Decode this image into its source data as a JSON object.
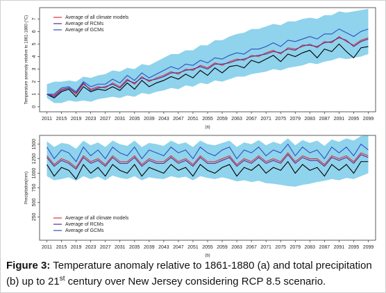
{
  "chart_data": [
    {
      "type": "line",
      "ylabel": "Temperature anomaly relative to 1861-1880 (°C)",
      "xlabel": "(a)",
      "legend": "top-left",
      "x": [
        2011,
        2013,
        2015,
        2017,
        2019,
        2021,
        2023,
        2025,
        2027,
        2029,
        2031,
        2033,
        2035,
        2037,
        2039,
        2041,
        2043,
        2045,
        2047,
        2049,
        2051,
        2053,
        2055,
        2057,
        2059,
        2061,
        2063,
        2065,
        2067,
        2069,
        2071,
        2073,
        2075,
        2077,
        2079,
        2081,
        2083,
        2085,
        2087,
        2089,
        2091,
        2093,
        2095,
        2097,
        2099
      ],
      "xlim": [
        2009,
        2101
      ],
      "xticks": [
        2011,
        2015,
        2019,
        2023,
        2027,
        2031,
        2035,
        2039,
        2043,
        2047,
        2051,
        2055,
        2059,
        2063,
        2067,
        2071,
        2075,
        2079,
        2083,
        2087,
        2091,
        2095,
        2099
      ],
      "ylim": [
        -0.4,
        7.9
      ],
      "yticks": [
        0,
        1,
        2,
        3,
        4,
        5,
        6,
        7
      ],
      "band": {
        "color": "#8fd3ec",
        "lower": [
          0.7,
          0.3,
          0.3,
          0.5,
          0.4,
          0.5,
          0.4,
          0.6,
          0.7,
          0.8,
          0.7,
          0.9,
          0.8,
          1.1,
          1.0,
          1.2,
          1.3,
          1.5,
          1.4,
          1.7,
          1.6,
          1.9,
          1.8,
          2.1,
          2.0,
          2.2,
          2.4,
          2.4,
          2.6,
          2.7,
          2.8,
          3.0,
          2.9,
          3.1,
          3.2,
          3.3,
          3.5,
          3.4,
          3.6,
          3.7,
          3.9,
          3.8,
          3.9,
          4.0,
          4.2
        ],
        "upper": [
          1.8,
          2.0,
          2.0,
          2.1,
          2.0,
          2.4,
          2.3,
          2.5,
          2.6,
          2.9,
          2.8,
          3.1,
          3.0,
          3.4,
          3.3,
          3.6,
          3.9,
          4.2,
          4.2,
          4.5,
          4.5,
          4.9,
          4.9,
          5.3,
          5.3,
          5.6,
          5.8,
          5.9,
          6.2,
          6.2,
          6.4,
          6.6,
          6.5,
          6.8,
          6.8,
          7.0,
          7.1,
          7.0,
          7.3,
          7.3,
          7.6,
          7.5,
          7.6,
          7.7,
          7.8
        ]
      },
      "series": [
        {
          "color": "#000000",
          "values": [
            1.0,
            0.7,
            1.2,
            1.4,
            0.8,
            1.6,
            1.2,
            1.4,
            1.3,
            1.6,
            1.3,
            1.9,
            1.4,
            2.1,
            1.6,
            1.9,
            2.1,
            2.4,
            2.2,
            2.6,
            2.3,
            2.9,
            2.5,
            3.1,
            2.7,
            3.2,
            3.3,
            3.1,
            3.7,
            3.5,
            3.8,
            4.1,
            3.6,
            4.2,
            4.0,
            4.3,
            4.5,
            3.9,
            4.6,
            4.4,
            5.0,
            4.4,
            3.9,
            4.7,
            4.8
          ]
        },
        {
          "name": "Average of all climate models",
          "color": "#e0303a",
          "values": [
            1.0,
            0.9,
            1.4,
            1.5,
            1.0,
            1.8,
            1.4,
            1.6,
            1.5,
            1.9,
            1.6,
            2.2,
            1.8,
            2.4,
            2.0,
            2.3,
            2.5,
            2.8,
            2.6,
            3.0,
            2.9,
            3.3,
            3.1,
            3.5,
            3.3,
            3.6,
            3.8,
            3.7,
            4.1,
            4.0,
            4.3,
            4.5,
            4.2,
            4.7,
            4.6,
            4.8,
            5.0,
            4.7,
            5.2,
            5.1,
            5.6,
            5.2,
            4.9,
            5.3,
            5.5
          ]
        },
        {
          "name": "Average of RCMs",
          "color": "#5a2a8a",
          "values": [
            1.0,
            0.8,
            1.3,
            1.5,
            1.1,
            1.9,
            1.3,
            1.5,
            1.6,
            1.8,
            1.5,
            2.1,
            1.9,
            2.3,
            2.1,
            2.2,
            2.4,
            2.7,
            2.7,
            2.9,
            3.0,
            3.2,
            3.0,
            3.4,
            3.4,
            3.5,
            3.7,
            3.8,
            4.0,
            4.1,
            4.2,
            4.4,
            4.3,
            4.6,
            4.5,
            4.9,
            4.9,
            4.8,
            5.1,
            5.2,
            5.5,
            5.3,
            4.8,
            5.2,
            5.4
          ]
        },
        {
          "name": "Average of GCMs",
          "color": "#2b4fc4",
          "values": [
            1.0,
            1.0,
            1.5,
            1.6,
            1.2,
            2.0,
            1.6,
            1.8,
            1.8,
            2.2,
            1.9,
            2.5,
            2.1,
            2.7,
            2.3,
            2.6,
            2.9,
            3.2,
            3.0,
            3.4,
            3.3,
            3.7,
            3.5,
            3.9,
            3.8,
            4.1,
            4.3,
            4.2,
            4.6,
            4.6,
            4.8,
            5.1,
            4.8,
            5.3,
            5.2,
            5.4,
            5.6,
            5.4,
            5.8,
            5.8,
            6.2,
            5.9,
            5.6,
            6.0,
            6.2
          ]
        }
      ]
    },
    {
      "type": "line",
      "ylabel": "Precipitation(mm)",
      "xlabel": "(b)",
      "legend": "bottom-left",
      "x": [
        2011,
        2013,
        2015,
        2017,
        2019,
        2021,
        2023,
        2025,
        2027,
        2029,
        2031,
        2033,
        2035,
        2037,
        2039,
        2041,
        2043,
        2045,
        2047,
        2049,
        2051,
        2053,
        2055,
        2057,
        2059,
        2061,
        2063,
        2065,
        2067,
        2069,
        2071,
        2073,
        2075,
        2077,
        2079,
        2081,
        2083,
        2085,
        2087,
        2089,
        2091,
        2093,
        2095,
        2097,
        2099
      ],
      "xlim": [
        2009,
        2101
      ],
      "xticks": [
        2011,
        2015,
        2019,
        2023,
        2027,
        2031,
        2035,
        2039,
        2043,
        2047,
        2051,
        2055,
        2059,
        2063,
        2067,
        2071,
        2075,
        2079,
        2083,
        2087,
        2091,
        2095,
        2099
      ],
      "ylim": [
        -150,
        1650
      ],
      "yticks": [
        250,
        500,
        750,
        1000,
        1250,
        1500
      ],
      "band": {
        "color": "#8fd3ec",
        "lower": [
          950,
          880,
          900,
          930,
          870,
          950,
          900,
          940,
          880,
          960,
          920,
          900,
          950,
          880,
          930,
          910,
          900,
          950,
          920,
          940,
          880,
          950,
          920,
          900,
          930,
          900,
          860,
          880,
          850,
          870,
          830,
          820,
          800,
          780,
          770,
          800,
          820,
          850,
          870,
          900,
          880,
          920,
          900,
          950,
          1000
        ],
        "upper": [
          1550,
          1450,
          1520,
          1500,
          1420,
          1560,
          1480,
          1530,
          1450,
          1560,
          1500,
          1470,
          1560,
          1450,
          1520,
          1500,
          1470,
          1560,
          1500,
          1530,
          1450,
          1560,
          1500,
          1480,
          1520,
          1560,
          1450,
          1530,
          1500,
          1570,
          1480,
          1540,
          1500,
          1600,
          1480,
          1570,
          1520,
          1560,
          1470,
          1580,
          1540,
          1600,
          1560,
          1640,
          1650
        ]
      },
      "series": [
        {
          "color": "#000000",
          "values": [
            1150,
            950,
            1100,
            1050,
            900,
            1150,
            1000,
            1100,
            950,
            1150,
            1050,
            1000,
            1150,
            950,
            1100,
            1050,
            1000,
            1150,
            1050,
            1100,
            950,
            1150,
            1050,
            1000,
            1100,
            1150,
            950,
            1100,
            1050,
            1150,
            1000,
            1100,
            1050,
            1200,
            1000,
            1150,
            1050,
            1100,
            950,
            1150,
            1050,
            1150,
            1000,
            1200,
            1200
          ]
        },
        {
          "name": "Average of all climate models",
          "color": "#e0303a",
          "values": [
            1300,
            1150,
            1250,
            1200,
            1100,
            1300,
            1200,
            1250,
            1150,
            1300,
            1200,
            1200,
            1300,
            1150,
            1250,
            1200,
            1200,
            1300,
            1200,
            1250,
            1150,
            1300,
            1200,
            1200,
            1250,
            1300,
            1150,
            1250,
            1200,
            1300,
            1200,
            1250,
            1200,
            1350,
            1200,
            1300,
            1250,
            1250,
            1150,
            1300,
            1250,
            1300,
            1200,
            1350,
            1300
          ]
        },
        {
          "name": "Average of RCMs",
          "color": "#5a2a8a",
          "values": [
            1270,
            1120,
            1220,
            1170,
            1070,
            1270,
            1170,
            1220,
            1120,
            1270,
            1170,
            1170,
            1270,
            1120,
            1220,
            1170,
            1170,
            1270,
            1170,
            1220,
            1120,
            1270,
            1170,
            1170,
            1220,
            1270,
            1120,
            1220,
            1170,
            1270,
            1170,
            1220,
            1170,
            1320,
            1170,
            1270,
            1220,
            1220,
            1120,
            1270,
            1220,
            1270,
            1170,
            1320,
            1270
          ]
        },
        {
          "name": "Average of GCMs",
          "color": "#2b4fc4",
          "values": [
            1450,
            1250,
            1400,
            1350,
            1200,
            1450,
            1300,
            1400,
            1250,
            1450,
            1350,
            1300,
            1450,
            1250,
            1400,
            1350,
            1300,
            1450,
            1350,
            1400,
            1250,
            1450,
            1350,
            1300,
            1400,
            1450,
            1250,
            1400,
            1350,
            1450,
            1300,
            1400,
            1350,
            1500,
            1300,
            1450,
            1350,
            1400,
            1250,
            1450,
            1350,
            1450,
            1300,
            1500,
            1400
          ]
        }
      ]
    }
  ],
  "caption": {
    "label": "Figure 3:",
    "text": "Temperature anomaly relative to 1861-1880 (a) and total precipitation (b) up to 21",
    "superscript": "st",
    "text_end": "century over New Jersey considering RCP 8.5 scenario."
  }
}
